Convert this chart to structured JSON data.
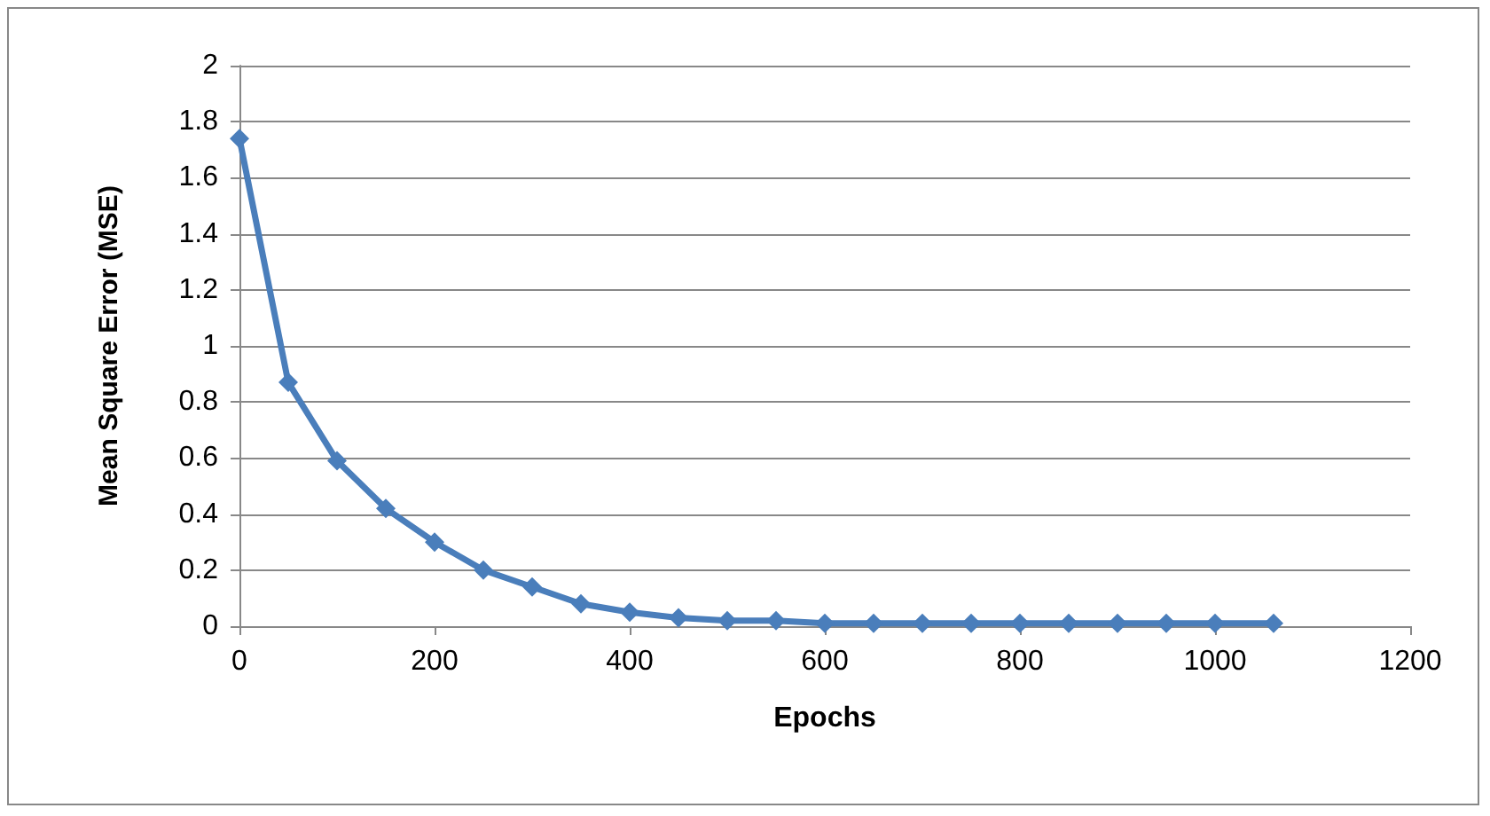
{
  "chart_data": {
    "type": "line",
    "xlabel": "Epochs",
    "ylabel": "Mean Square Error (MSE)",
    "x": [
      0,
      50,
      100,
      150,
      200,
      250,
      300,
      350,
      400,
      450,
      500,
      550,
      600,
      650,
      700,
      750,
      800,
      850,
      900,
      950,
      1000,
      1060
    ],
    "series": [
      {
        "color": "#4a7ebb",
        "values": [
          1.74,
          0.87,
          0.59,
          0.42,
          0.3,
          0.2,
          0.14,
          0.08,
          0.05,
          0.03,
          0.02,
          0.02,
          0.01,
          0.01,
          0.01,
          0.01,
          0.01,
          0.01,
          0.01,
          0.01,
          0.01,
          0.01
        ]
      }
    ],
    "xlim": [
      0,
      1200
    ],
    "xticks": [
      0,
      200,
      400,
      600,
      800,
      1000,
      1200
    ],
    "ylim": [
      0,
      2
    ],
    "yticks": [
      0,
      0.2,
      0.4,
      0.6,
      0.8,
      1,
      1.2,
      1.4,
      1.6,
      1.8,
      2
    ],
    "grid": "y",
    "marker": "diamond",
    "line_style": "solid"
  }
}
